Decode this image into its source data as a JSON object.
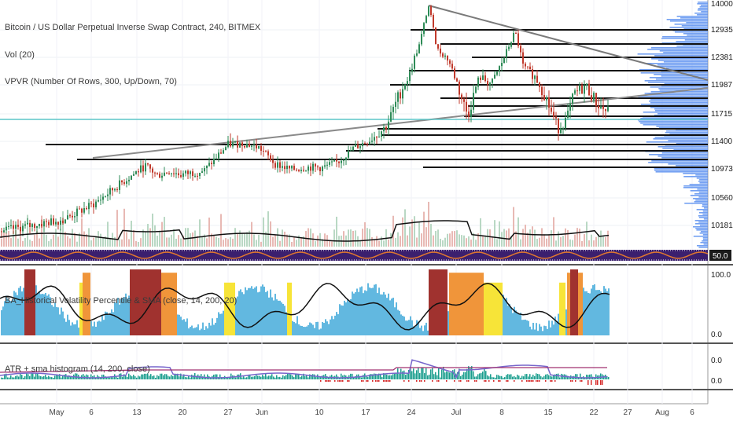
{
  "chart_data": {
    "type": "candlestick",
    "title": "Bitcoin / US Dollar Perpetual Inverse Swap Contract, 240, BITMEX",
    "indicators": {
      "volume": "Vol (20)",
      "vpvr": "VPVR (Number Of Rows, 300, Up/Down, 70)",
      "hv": "BA_Historical Volatility Percentile & SMA (close, 14, 200, 20)",
      "atr": "ATR + sma histogram (14, 200, close)"
    },
    "price_axis_labels": [
      "14000.0",
      "12935.5",
      "12381.5",
      "11987.5",
      "11715.0",
      "11400.0",
      "10973.0",
      "10560.0",
      "10181.5",
      "50.0"
    ],
    "hv_axis_labels": [
      "100.0",
      "0.0"
    ],
    "atr_axis_labels": [
      "0.0",
      "0.0"
    ],
    "x_tick_labels": [
      "May",
      "6",
      "13",
      "20",
      "27",
      "Jun",
      "10",
      "17",
      "24",
      "Jul",
      "8",
      "15",
      "22",
      "27",
      "Aug",
      "6"
    ],
    "price_levels_horizontal": [
      12935.5,
      12381.5,
      11987.5,
      11715.0,
      11400.0,
      10973.0
    ],
    "last_price": 11715.0,
    "colors": {
      "up_candle": "#2e8b57",
      "down_candle": "#c0392b",
      "volume_profile": "#5b8ff0",
      "hv_sma_line": "#111111",
      "hv_low": "#62b8e0",
      "hv_mid": "#f7e438",
      "hv_high": "#f0953a",
      "hv_extreme": "#a0322f",
      "atr_line": "#7766cc",
      "atr_sma": "#a03070",
      "atr_hist": "#1a9e8e",
      "atr_neg": "#d62a2a",
      "cyan_line": "#5cc6c8"
    }
  }
}
